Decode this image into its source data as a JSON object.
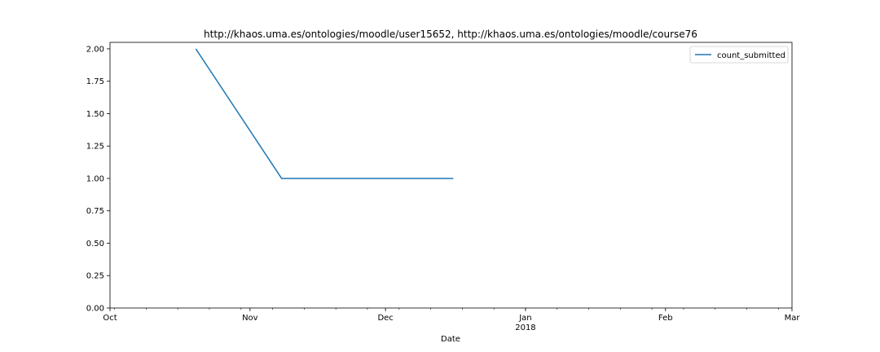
{
  "chart_data": {
    "type": "line",
    "title": "http://khaos.uma.es/ontologies/moodle/user15652, http://khaos.uma.es/ontologies/moodle/course76",
    "xlabel": "Date",
    "ylabel": "",
    "xlim": [
      "2017-10-01",
      "2018-03-01"
    ],
    "ylim": [
      0,
      2.05
    ],
    "x_major_ticks": [
      {
        "date": "2017-10-01",
        "label": "Oct",
        "sublabel": ""
      },
      {
        "date": "2017-11-01",
        "label": "Nov",
        "sublabel": ""
      },
      {
        "date": "2017-12-01",
        "label": "Dec",
        "sublabel": ""
      },
      {
        "date": "2018-01-01",
        "label": "Jan",
        "sublabel": "2018"
      },
      {
        "date": "2018-02-01",
        "label": "Feb",
        "sublabel": ""
      },
      {
        "date": "2018-03-01",
        "label": "Mar",
        "sublabel": ""
      }
    ],
    "y_ticks": [
      {
        "value": 0,
        "label": "0.00"
      },
      {
        "value": 0.25,
        "label": "0.25"
      },
      {
        "value": 0.5,
        "label": "0.50"
      },
      {
        "value": 0.75,
        "label": "0.75"
      },
      {
        "value": 1.0,
        "label": "1.00"
      },
      {
        "value": 1.25,
        "label": "1.25"
      },
      {
        "value": 1.5,
        "label": "1.50"
      },
      {
        "value": 1.75,
        "label": "1.75"
      },
      {
        "value": 2.0,
        "label": "2.00"
      }
    ],
    "grid": false,
    "legend": "top-right",
    "series": [
      {
        "name": "count_submitted",
        "color": "#1f77b4",
        "x": [
          "2017-10-20",
          "2017-11-08",
          "2017-12-16"
        ],
        "y": [
          2,
          1,
          1
        ]
      }
    ]
  }
}
